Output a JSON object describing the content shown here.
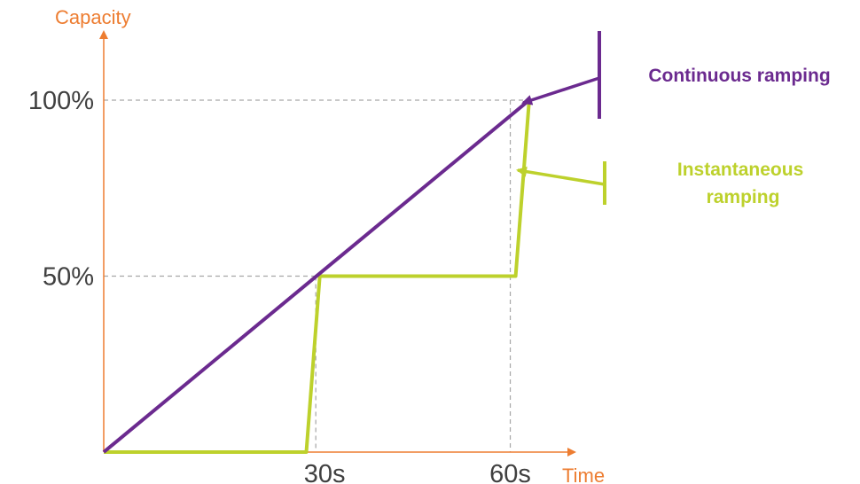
{
  "chart_data": {
    "type": "line",
    "xlabel": "Time",
    "ylabel": "Capacity",
    "xlim": [
      0,
      72
    ],
    "ylim": [
      0,
      100
    ],
    "x_ticks": [
      {
        "value": 30,
        "label": "30s"
      },
      {
        "value": 60,
        "label": "60s"
      }
    ],
    "y_ticks": [
      {
        "value": 50,
        "label": "50%"
      },
      {
        "value": 100,
        "label": "100%"
      }
    ],
    "grid": false,
    "series": [
      {
        "name": "Continuous ramping",
        "color": "#6b2a8f",
        "x": [
          0,
          63
        ],
        "y": [
          0,
          100
        ]
      },
      {
        "name": "Instantaneous ramping",
        "color": "#bdd12c",
        "x": [
          0,
          30,
          32,
          61,
          63
        ],
        "y": [
          0,
          0,
          50,
          50,
          100
        ]
      }
    ],
    "annotations": [
      {
        "lines": [
          "Continuous ramping"
        ],
        "color": "#6b2a8f",
        "series": 0
      },
      {
        "lines": [
          "Instantaneous",
          "ramping"
        ],
        "color": "#bdd12c",
        "series": 1
      }
    ],
    "colors": {
      "axis": "#ed7d31",
      "guide": "#a6a6a6",
      "tick_text": "#404040"
    }
  }
}
